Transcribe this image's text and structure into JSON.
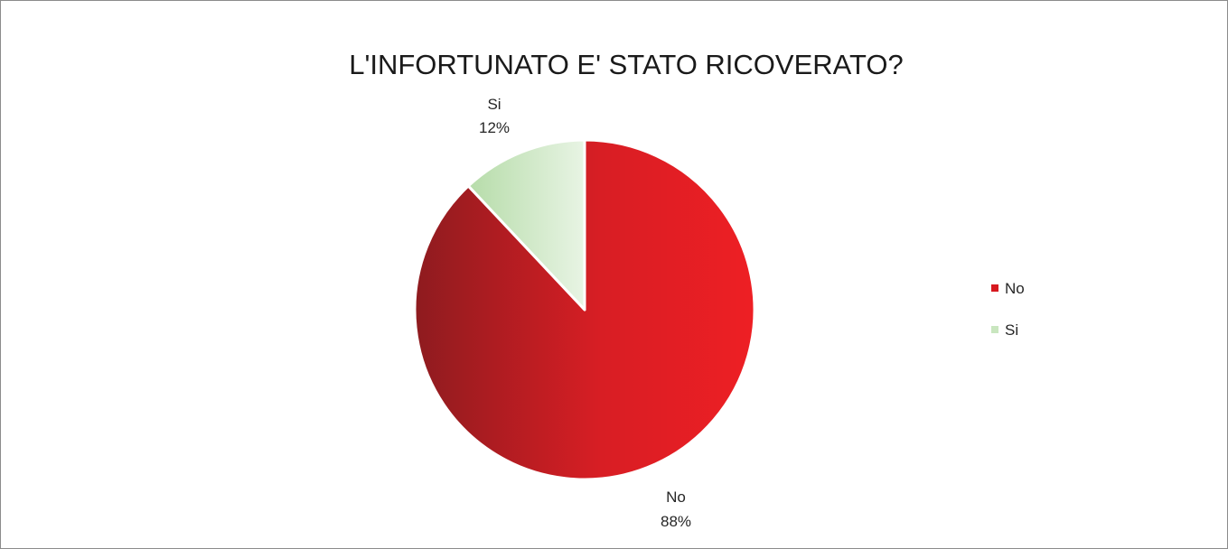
{
  "chart_data": {
    "type": "pie",
    "title": "L'INFORTUNATO E' STATO RICOVERATO?",
    "categories": [
      "No",
      "Si"
    ],
    "values": [
      88,
      12
    ],
    "data_labels": [
      {
        "category": "No",
        "percent": "88%"
      },
      {
        "category": "Si",
        "percent": "12%"
      }
    ],
    "legend": {
      "position": "right",
      "entries": [
        "No",
        "Si"
      ]
    },
    "colors": {
      "No_light": "#ee1f24",
      "No_dark": "#8e1b1f",
      "Si_light": "#e8f4e4",
      "Si_dark": "#b6dca9"
    }
  }
}
